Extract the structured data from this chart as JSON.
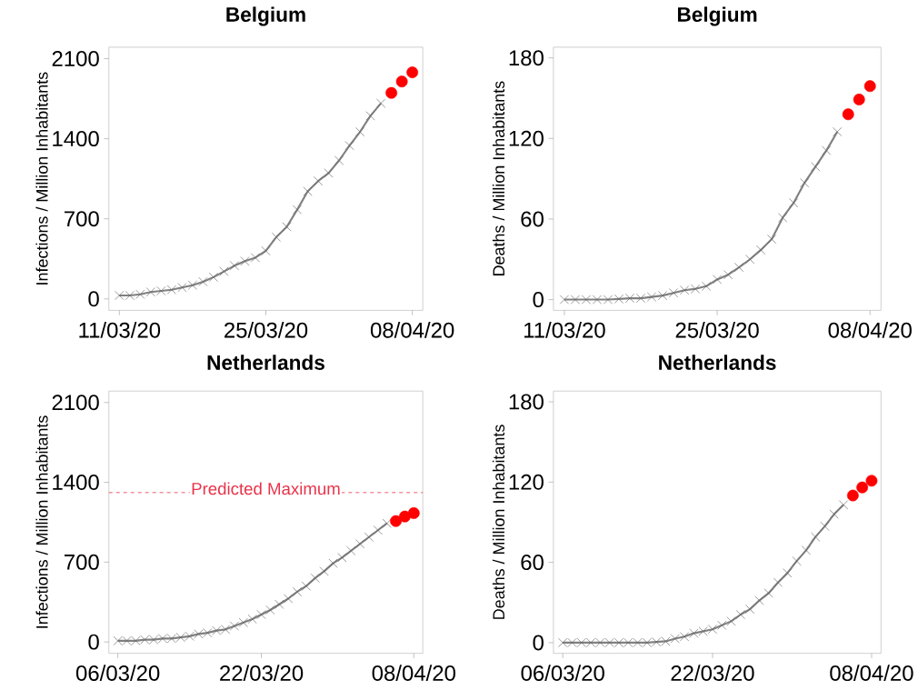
{
  "chart_data": [
    {
      "type": "line",
      "title": "Belgium",
      "ylabel": "Infections / Million Inhabitants",
      "xlim": [
        "2020-03-10",
        "2020-04-09"
      ],
      "ylim": [
        -100,
        2200
      ],
      "yticks": [
        0,
        700,
        1400,
        2100
      ],
      "xticks": [
        {
          "value": "2020-03-11",
          "label": "11/03/20"
        },
        {
          "value": "2020-03-25",
          "label": "25/03/20"
        },
        {
          "value": "2020-04-08",
          "label": "08/04/20"
        }
      ],
      "series": [
        {
          "marker": "cross",
          "color": "#808080",
          "x": [
            "2020-03-11",
            "2020-03-12",
            "2020-03-13",
            "2020-03-14",
            "2020-03-15",
            "2020-03-16",
            "2020-03-17",
            "2020-03-18",
            "2020-03-19",
            "2020-03-20",
            "2020-03-21",
            "2020-03-22",
            "2020-03-23",
            "2020-03-24",
            "2020-03-25",
            "2020-03-26",
            "2020-03-27",
            "2020-03-28",
            "2020-03-29",
            "2020-03-30",
            "2020-03-31",
            "2020-04-01",
            "2020-04-02",
            "2020-04-03",
            "2020-04-04",
            "2020-04-05"
          ],
          "values": [
            30,
            30,
            40,
            60,
            70,
            80,
            100,
            120,
            150,
            190,
            240,
            290,
            330,
            360,
            420,
            540,
            630,
            780,
            940,
            1030,
            1100,
            1210,
            1340,
            1460,
            1600,
            1710
          ]
        },
        {
          "type": "scatter",
          "marker": "circle",
          "color": "#ff0000",
          "x": [
            "2020-04-06",
            "2020-04-07",
            "2020-04-08"
          ],
          "values": [
            1800,
            1900,
            1980
          ]
        }
      ]
    },
    {
      "type": "line",
      "title": "Belgium",
      "ylabel": "Deaths / Million Inhabitants",
      "xlim": [
        "2020-03-10",
        "2020-04-09"
      ],
      "ylim": [
        -8,
        188
      ],
      "yticks": [
        0,
        60,
        120,
        180
      ],
      "xticks": [
        {
          "value": "2020-03-11",
          "label": "11/03/20"
        },
        {
          "value": "2020-03-25",
          "label": "25/03/20"
        },
        {
          "value": "2020-04-08",
          "label": "08/04/20"
        }
      ],
      "series": [
        {
          "marker": "cross",
          "color": "#808080",
          "x": [
            "2020-03-11",
            "2020-03-12",
            "2020-03-13",
            "2020-03-14",
            "2020-03-15",
            "2020-03-16",
            "2020-03-17",
            "2020-03-18",
            "2020-03-19",
            "2020-03-20",
            "2020-03-21",
            "2020-03-22",
            "2020-03-23",
            "2020-03-24",
            "2020-03-25",
            "2020-03-26",
            "2020-03-27",
            "2020-03-28",
            "2020-03-29",
            "2020-03-30",
            "2020-03-31",
            "2020-04-01",
            "2020-04-02",
            "2020-04-03",
            "2020-04-04",
            "2020-04-05"
          ],
          "values": [
            0,
            0,
            0,
            0,
            0,
            0.5,
            1,
            1,
            2,
            3,
            5,
            7,
            8,
            10,
            15,
            18.5,
            24,
            30,
            37,
            45,
            61,
            72,
            87,
            99,
            111,
            125
          ]
        },
        {
          "type": "scatter",
          "marker": "circle",
          "color": "#ff0000",
          "x": [
            "2020-04-06",
            "2020-04-07",
            "2020-04-08"
          ],
          "values": [
            138,
            149,
            159
          ]
        }
      ]
    },
    {
      "type": "line",
      "title": "Netherlands",
      "ylabel": "Infections / Million Inhabitants",
      "xlim": [
        "2020-03-05",
        "2020-04-09"
      ],
      "ylim": [
        -100,
        2200
      ],
      "yticks": [
        0,
        700,
        1400,
        2100
      ],
      "xticks": [
        {
          "value": "2020-03-06",
          "label": "06/03/20"
        },
        {
          "value": "2020-03-22",
          "label": "22/03/20"
        },
        {
          "value": "2020-04-08",
          "label": "08/04/20"
        }
      ],
      "ref_lines": [
        {
          "axis": "y",
          "value": 1310,
          "label": "Predicted Maximum",
          "color": "#e8334a",
          "line_style": "dashed"
        }
      ],
      "series": [
        {
          "marker": "cross",
          "color": "#808080",
          "x": [
            "2020-03-06",
            "2020-03-07",
            "2020-03-08",
            "2020-03-09",
            "2020-03-10",
            "2020-03-11",
            "2020-03-12",
            "2020-03-13",
            "2020-03-14",
            "2020-03-15",
            "2020-03-16",
            "2020-03-17",
            "2020-03-18",
            "2020-03-19",
            "2020-03-20",
            "2020-03-21",
            "2020-03-22",
            "2020-03-23",
            "2020-03-24",
            "2020-03-25",
            "2020-03-26",
            "2020-03-27",
            "2020-03-28",
            "2020-03-29",
            "2020-03-30",
            "2020-03-31",
            "2020-04-01",
            "2020-04-02",
            "2020-04-03",
            "2020-04-04",
            "2020-04-05"
          ],
          "values": [
            10,
            10,
            10,
            20,
            20,
            30,
            30,
            40,
            50,
            70,
            80,
            100,
            110,
            140,
            170,
            200,
            240,
            280,
            330,
            380,
            440,
            490,
            560,
            620,
            690,
            740,
            800,
            860,
            920,
            980,
            1040
          ]
        },
        {
          "type": "scatter",
          "marker": "circle",
          "color": "#ff0000",
          "x": [
            "2020-04-06",
            "2020-04-07",
            "2020-04-08"
          ],
          "values": [
            1060,
            1100,
            1130
          ]
        }
      ]
    },
    {
      "type": "line",
      "title": "Netherlands",
      "ylabel": "Deaths / Million Inhabitants",
      "xlim": [
        "2020-03-05",
        "2020-04-09"
      ],
      "ylim": [
        -8,
        188
      ],
      "yticks": [
        0,
        60,
        120,
        180
      ],
      "xticks": [
        {
          "value": "2020-03-06",
          "label": "06/03/20"
        },
        {
          "value": "2020-03-22",
          "label": "22/03/20"
        },
        {
          "value": "2020-04-08",
          "label": "08/04/20"
        }
      ],
      "series": [
        {
          "marker": "cross",
          "color": "#808080",
          "x": [
            "2020-03-06",
            "2020-03-07",
            "2020-03-08",
            "2020-03-09",
            "2020-03-10",
            "2020-03-11",
            "2020-03-12",
            "2020-03-13",
            "2020-03-14",
            "2020-03-15",
            "2020-03-16",
            "2020-03-17",
            "2020-03-18",
            "2020-03-19",
            "2020-03-20",
            "2020-03-21",
            "2020-03-22",
            "2020-03-23",
            "2020-03-24",
            "2020-03-25",
            "2020-03-26",
            "2020-03-27",
            "2020-03-28",
            "2020-03-29",
            "2020-03-30",
            "2020-03-31",
            "2020-04-01",
            "2020-04-02",
            "2020-04-03",
            "2020-04-04",
            "2020-04-05"
          ],
          "values": [
            0,
            0,
            0,
            0,
            0,
            0,
            0,
            0,
            0,
            0,
            0.5,
            1,
            3,
            4.5,
            7,
            8.5,
            10,
            13,
            16,
            21,
            25,
            31.5,
            37,
            45,
            52,
            61,
            69,
            79,
            87,
            96,
            103
          ]
        },
        {
          "type": "scatter",
          "marker": "circle",
          "color": "#ff0000",
          "x": [
            "2020-04-06",
            "2020-04-07",
            "2020-04-08"
          ],
          "values": [
            110,
            116,
            121
          ]
        }
      ]
    }
  ]
}
